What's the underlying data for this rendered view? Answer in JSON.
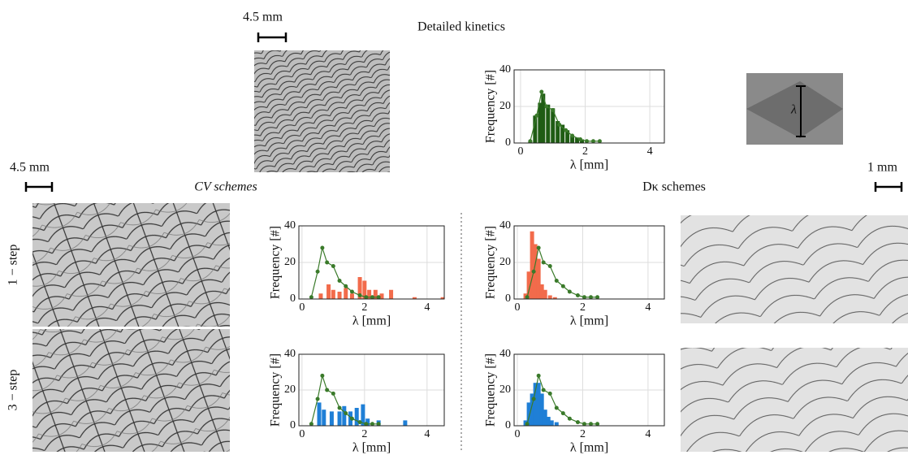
{
  "labels": {
    "top_title": "Detailed kinetics",
    "cv_title": "CV schemes",
    "dk_title": "Dκ schemes",
    "scale_top": "4.5 mm",
    "scale_left": "4.5 mm",
    "scale_right": "1 mm",
    "row_1": "1 − step",
    "row_3": "3 − step",
    "inset": "λ"
  },
  "chart_data": [
    {
      "type": "bar",
      "xlabel": "λ [mm]",
      "ylabel": "Frequency [#]",
      "xlim": [
        -0.2,
        4.45
      ],
      "ylim": [
        0,
        40
      ],
      "xticks": [
        0,
        2,
        4
      ],
      "yticks": [
        0,
        20,
        40
      ],
      "grid": true,
      "series": [
        {
          "type": "bar",
          "color": "#1f5c14",
          "x": [
            0.3,
            0.45,
            0.6,
            0.7,
            0.85,
            1.0,
            1.15,
            1.3,
            1.45,
            1.6,
            1.75,
            1.9
          ],
          "values": [
            1,
            15,
            22,
            27,
            21,
            19,
            12,
            10,
            7,
            4,
            3,
            2
          ]
        },
        {
          "type": "line",
          "color": "#3a7a2a",
          "x": [
            0.3,
            0.5,
            0.65,
            0.8,
            1.0,
            1.2,
            1.4,
            1.6,
            1.85,
            2.05,
            2.25,
            2.45
          ],
          "values": [
            1,
            15,
            28,
            20,
            18,
            10,
            7,
            4,
            2,
            1,
            1,
            1
          ]
        }
      ]
    },
    {
      "type": "bar",
      "xlabel": "λ [mm]",
      "ylabel": "Frequency [#]",
      "xlim": [
        -0.1,
        4.55
      ],
      "ylim": [
        0,
        40
      ],
      "xticks": [
        0,
        2,
        4
      ],
      "yticks": [
        0,
        20,
        40
      ],
      "grid": true,
      "series": [
        {
          "type": "bar",
          "color": "#f26b4b",
          "x": [
            0.6,
            0.85,
            1.0,
            1.2,
            1.4,
            1.6,
            1.85,
            2.0,
            2.15,
            2.35,
            2.55,
            2.85,
            3.6,
            4.5
          ],
          "values": [
            3,
            8,
            5,
            4,
            6,
            3,
            12,
            10,
            5,
            5,
            3,
            5,
            1,
            1
          ]
        },
        {
          "type": "line",
          "color": "#3a7a2a",
          "x": [
            0.3,
            0.5,
            0.65,
            0.8,
            1.0,
            1.2,
            1.4,
            1.6,
            1.85,
            2.05,
            2.25,
            2.45
          ],
          "values": [
            1,
            15,
            28,
            20,
            18,
            10,
            7,
            4,
            2,
            1,
            1,
            1
          ]
        }
      ]
    },
    {
      "type": "bar",
      "xlabel": "λ [mm]",
      "ylabel": "Frequency [#]",
      "xlim": [
        -0.1,
        4.55
      ],
      "ylim": [
        0,
        40
      ],
      "xticks": [
        0,
        2,
        4
      ],
      "yticks": [
        0,
        20,
        40
      ],
      "grid": true,
      "series": [
        {
          "type": "bar",
          "color": "#1f7fd6",
          "x": [
            0.55,
            0.7,
            0.95,
            1.2,
            1.35,
            1.55,
            1.75,
            1.95,
            2.1,
            2.45,
            3.3
          ],
          "values": [
            13,
            9,
            8,
            8,
            11,
            8,
            10,
            12,
            4,
            3,
            3
          ]
        },
        {
          "type": "line",
          "color": "#3a7a2a",
          "x": [
            0.3,
            0.5,
            0.65,
            0.8,
            1.0,
            1.2,
            1.4,
            1.6,
            1.85,
            2.05,
            2.25,
            2.45
          ],
          "values": [
            1,
            15,
            28,
            20,
            18,
            10,
            7,
            4,
            2,
            1,
            1,
            1
          ]
        }
      ]
    },
    {
      "type": "bar",
      "xlabel": "λ [mm]",
      "ylabel": "Frequency [#]",
      "xlim": [
        -0.1,
        4.5
      ],
      "ylim": [
        0,
        40
      ],
      "xticks": [
        0,
        2,
        4
      ],
      "yticks": [
        0,
        20,
        40
      ],
      "grid": true,
      "series": [
        {
          "type": "bar",
          "color": "#f26b4b",
          "x": [
            0.25,
            0.35,
            0.45,
            0.55,
            0.65,
            0.75,
            0.85,
            1.0,
            1.15
          ],
          "values": [
            3,
            15,
            37,
            30,
            22,
            8,
            5,
            2,
            1
          ]
        },
        {
          "type": "line",
          "color": "#3a7a2a",
          "x": [
            0.3,
            0.5,
            0.65,
            0.8,
            1.0,
            1.2,
            1.4,
            1.6,
            1.85,
            2.05,
            2.25,
            2.45
          ],
          "values": [
            1,
            15,
            28,
            20,
            18,
            10,
            7,
            4,
            2,
            1,
            1,
            1
          ]
        }
      ]
    },
    {
      "type": "bar",
      "xlabel": "λ [mm]",
      "ylabel": "Frequency [#]",
      "xlim": [
        -0.1,
        4.5
      ],
      "ylim": [
        0,
        40
      ],
      "xticks": [
        0,
        2,
        4
      ],
      "yticks": [
        0,
        20,
        40
      ],
      "grid": true,
      "series": [
        {
          "type": "bar",
          "color": "#1f7fd6",
          "x": [
            0.25,
            0.35,
            0.45,
            0.55,
            0.65,
            0.75,
            0.85,
            0.95,
            1.05,
            1.2
          ],
          "values": [
            3,
            13,
            18,
            24,
            24,
            18,
            9,
            5,
            3,
            2
          ]
        },
        {
          "type": "line",
          "color": "#3a7a2a",
          "x": [
            0.3,
            0.5,
            0.65,
            0.8,
            1.0,
            1.2,
            1.4,
            1.6,
            1.85,
            2.05,
            2.25,
            2.45
          ],
          "values": [
            1,
            15,
            28,
            20,
            18,
            10,
            7,
            4,
            2,
            1,
            1,
            1
          ]
        }
      ]
    }
  ]
}
